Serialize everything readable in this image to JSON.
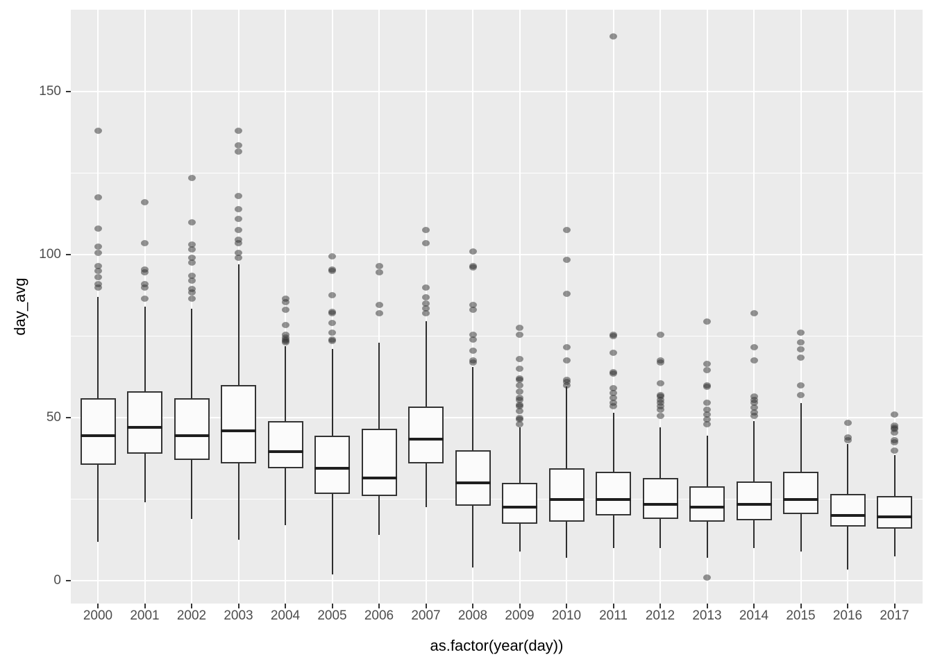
{
  "chart_data": {
    "type": "boxplot",
    "title": "",
    "xlabel": "as.factor(year(day))",
    "ylabel": "day_avg",
    "categories": [
      "2000",
      "2001",
      "2002",
      "2003",
      "2004",
      "2005",
      "2006",
      "2007",
      "2008",
      "2009",
      "2010",
      "2011",
      "2012",
      "2013",
      "2014",
      "2015",
      "2016",
      "2017"
    ],
    "y_major_ticks": [
      0,
      50,
      100,
      150
    ],
    "y_minor_gridlines": [
      25,
      75,
      125,
      175
    ],
    "ylim": [
      -7,
      175
    ],
    "grid": true,
    "legend": "none",
    "style": {
      "panel_bg": "#EBEBEB",
      "grid_color": "#FFFFFF",
      "box_fill": "#FBFBFB",
      "box_stroke": "#333333",
      "median_color": "#1F1F1F",
      "outlier_color": "rgba(45,45,45,0.5)",
      "axis_text_color": "#4D4D4D",
      "axis_title_color": "#000000"
    },
    "series": [
      {
        "year": "2000",
        "low": 12,
        "q1": 35.5,
        "median": 44.5,
        "q3": 56,
        "high": 87,
        "outliers": [
          138,
          117.5,
          108,
          102.5,
          100.5,
          96.5,
          95,
          93,
          91,
          90
        ]
      },
      {
        "year": "2001",
        "low": 24,
        "q1": 39,
        "median": 47,
        "q3": 58,
        "high": 84,
        "outliers": [
          116,
          103.5,
          95.5,
          94.5,
          91,
          90,
          86.5
        ]
      },
      {
        "year": "2002",
        "low": 19,
        "q1": 37,
        "median": 44.5,
        "q3": 56,
        "high": 83.5,
        "outliers": [
          123.5,
          110,
          103,
          101.5,
          99,
          97.5,
          93.5,
          92,
          89.5,
          88.5,
          86.5
        ]
      },
      {
        "year": "2003",
        "low": 12.5,
        "q1": 36,
        "median": 46,
        "q3": 60,
        "high": 97,
        "outliers": [
          138,
          133.5,
          131.5,
          118,
          114,
          111,
          107.5,
          104.5,
          103.5,
          100.5,
          99
        ]
      },
      {
        "year": "2004",
        "low": 17,
        "q1": 34.5,
        "median": 39.5,
        "q3": 49,
        "high": 72,
        "outliers": [
          86.5,
          85.5,
          83,
          78.5,
          75.5,
          74.5,
          74,
          73.5,
          73
        ]
      },
      {
        "year": "2005",
        "low": 2,
        "q1": 26.5,
        "median": 34.5,
        "q3": 44.5,
        "high": 71,
        "outliers": [
          99.5,
          95.5,
          95,
          87.5,
          82.5,
          82,
          79,
          76,
          74,
          73.5
        ]
      },
      {
        "year": "2006",
        "low": 14,
        "q1": 26,
        "median": 31.5,
        "q3": 46.5,
        "high": 73,
        "outliers": [
          96.5,
          94.5,
          84.5,
          82
        ]
      },
      {
        "year": "2007",
        "low": 22.5,
        "q1": 36,
        "median": 43.5,
        "q3": 53.5,
        "high": 79.5,
        "outliers": [
          107.5,
          103.5,
          90,
          87,
          85,
          83.5,
          82
        ]
      },
      {
        "year": "2008",
        "low": 4,
        "q1": 23,
        "median": 30,
        "q3": 40,
        "high": 65.5,
        "outliers": [
          101,
          96.5,
          96,
          84.5,
          83,
          75.5,
          74,
          70.5,
          67.5,
          67
        ]
      },
      {
        "year": "2009",
        "low": 9,
        "q1": 17.5,
        "median": 22.5,
        "q3": 30,
        "high": 47,
        "outliers": [
          77.5,
          75.5,
          68,
          65,
          62,
          61.5,
          60,
          58,
          56,
          55.5,
          54,
          53.5,
          52,
          50,
          49.5,
          48
        ]
      },
      {
        "year": "2010",
        "low": 7,
        "q1": 18,
        "median": 25,
        "q3": 34.5,
        "high": 59.5,
        "outliers": [
          107.5,
          98.5,
          88,
          71.5,
          67.5,
          61.5,
          61,
          60
        ]
      },
      {
        "year": "2011",
        "low": 10,
        "q1": 20,
        "median": 25,
        "q3": 33.5,
        "high": 51.5,
        "outliers": [
          167,
          75.5,
          75,
          70,
          64,
          63.5,
          59,
          57.5,
          56,
          54.5,
          53.5
        ]
      },
      {
        "year": "2012",
        "low": 10,
        "q1": 19,
        "median": 23.5,
        "q3": 31.5,
        "high": 47,
        "outliers": [
          75.5,
          67.5,
          67,
          60.5,
          57,
          56.5,
          55.5,
          54.5,
          53.5,
          52.5,
          50.5
        ]
      },
      {
        "year": "2013",
        "low": 7,
        "q1": 18,
        "median": 22.5,
        "q3": 29,
        "high": 44.5,
        "outliers": [
          79.5,
          66.5,
          64.5,
          60,
          59.5,
          54.5,
          52.5,
          51,
          49.5,
          48,
          1
        ]
      },
      {
        "year": "2014",
        "low": 10,
        "q1": 18.5,
        "median": 23.5,
        "q3": 30.5,
        "high": 49,
        "outliers": [
          82,
          71.5,
          67.5,
          56.5,
          55.5,
          54.5,
          53,
          51.5,
          50.5
        ]
      },
      {
        "year": "2015",
        "low": 9,
        "q1": 20.5,
        "median": 25,
        "q3": 33.5,
        "high": 54.5,
        "outliers": [
          76,
          73,
          71,
          68.5,
          60,
          57
        ]
      },
      {
        "year": "2016",
        "low": 3.5,
        "q1": 16.5,
        "median": 20,
        "q3": 26.5,
        "high": 42,
        "outliers": [
          48.5,
          44,
          43
        ]
      },
      {
        "year": "2017",
        "low": 7.5,
        "q1": 16,
        "median": 19.5,
        "q3": 26,
        "high": 38.5,
        "outliers": [
          51,
          47.5,
          47,
          46.5,
          45.5,
          43,
          42.5,
          40
        ]
      }
    ]
  }
}
